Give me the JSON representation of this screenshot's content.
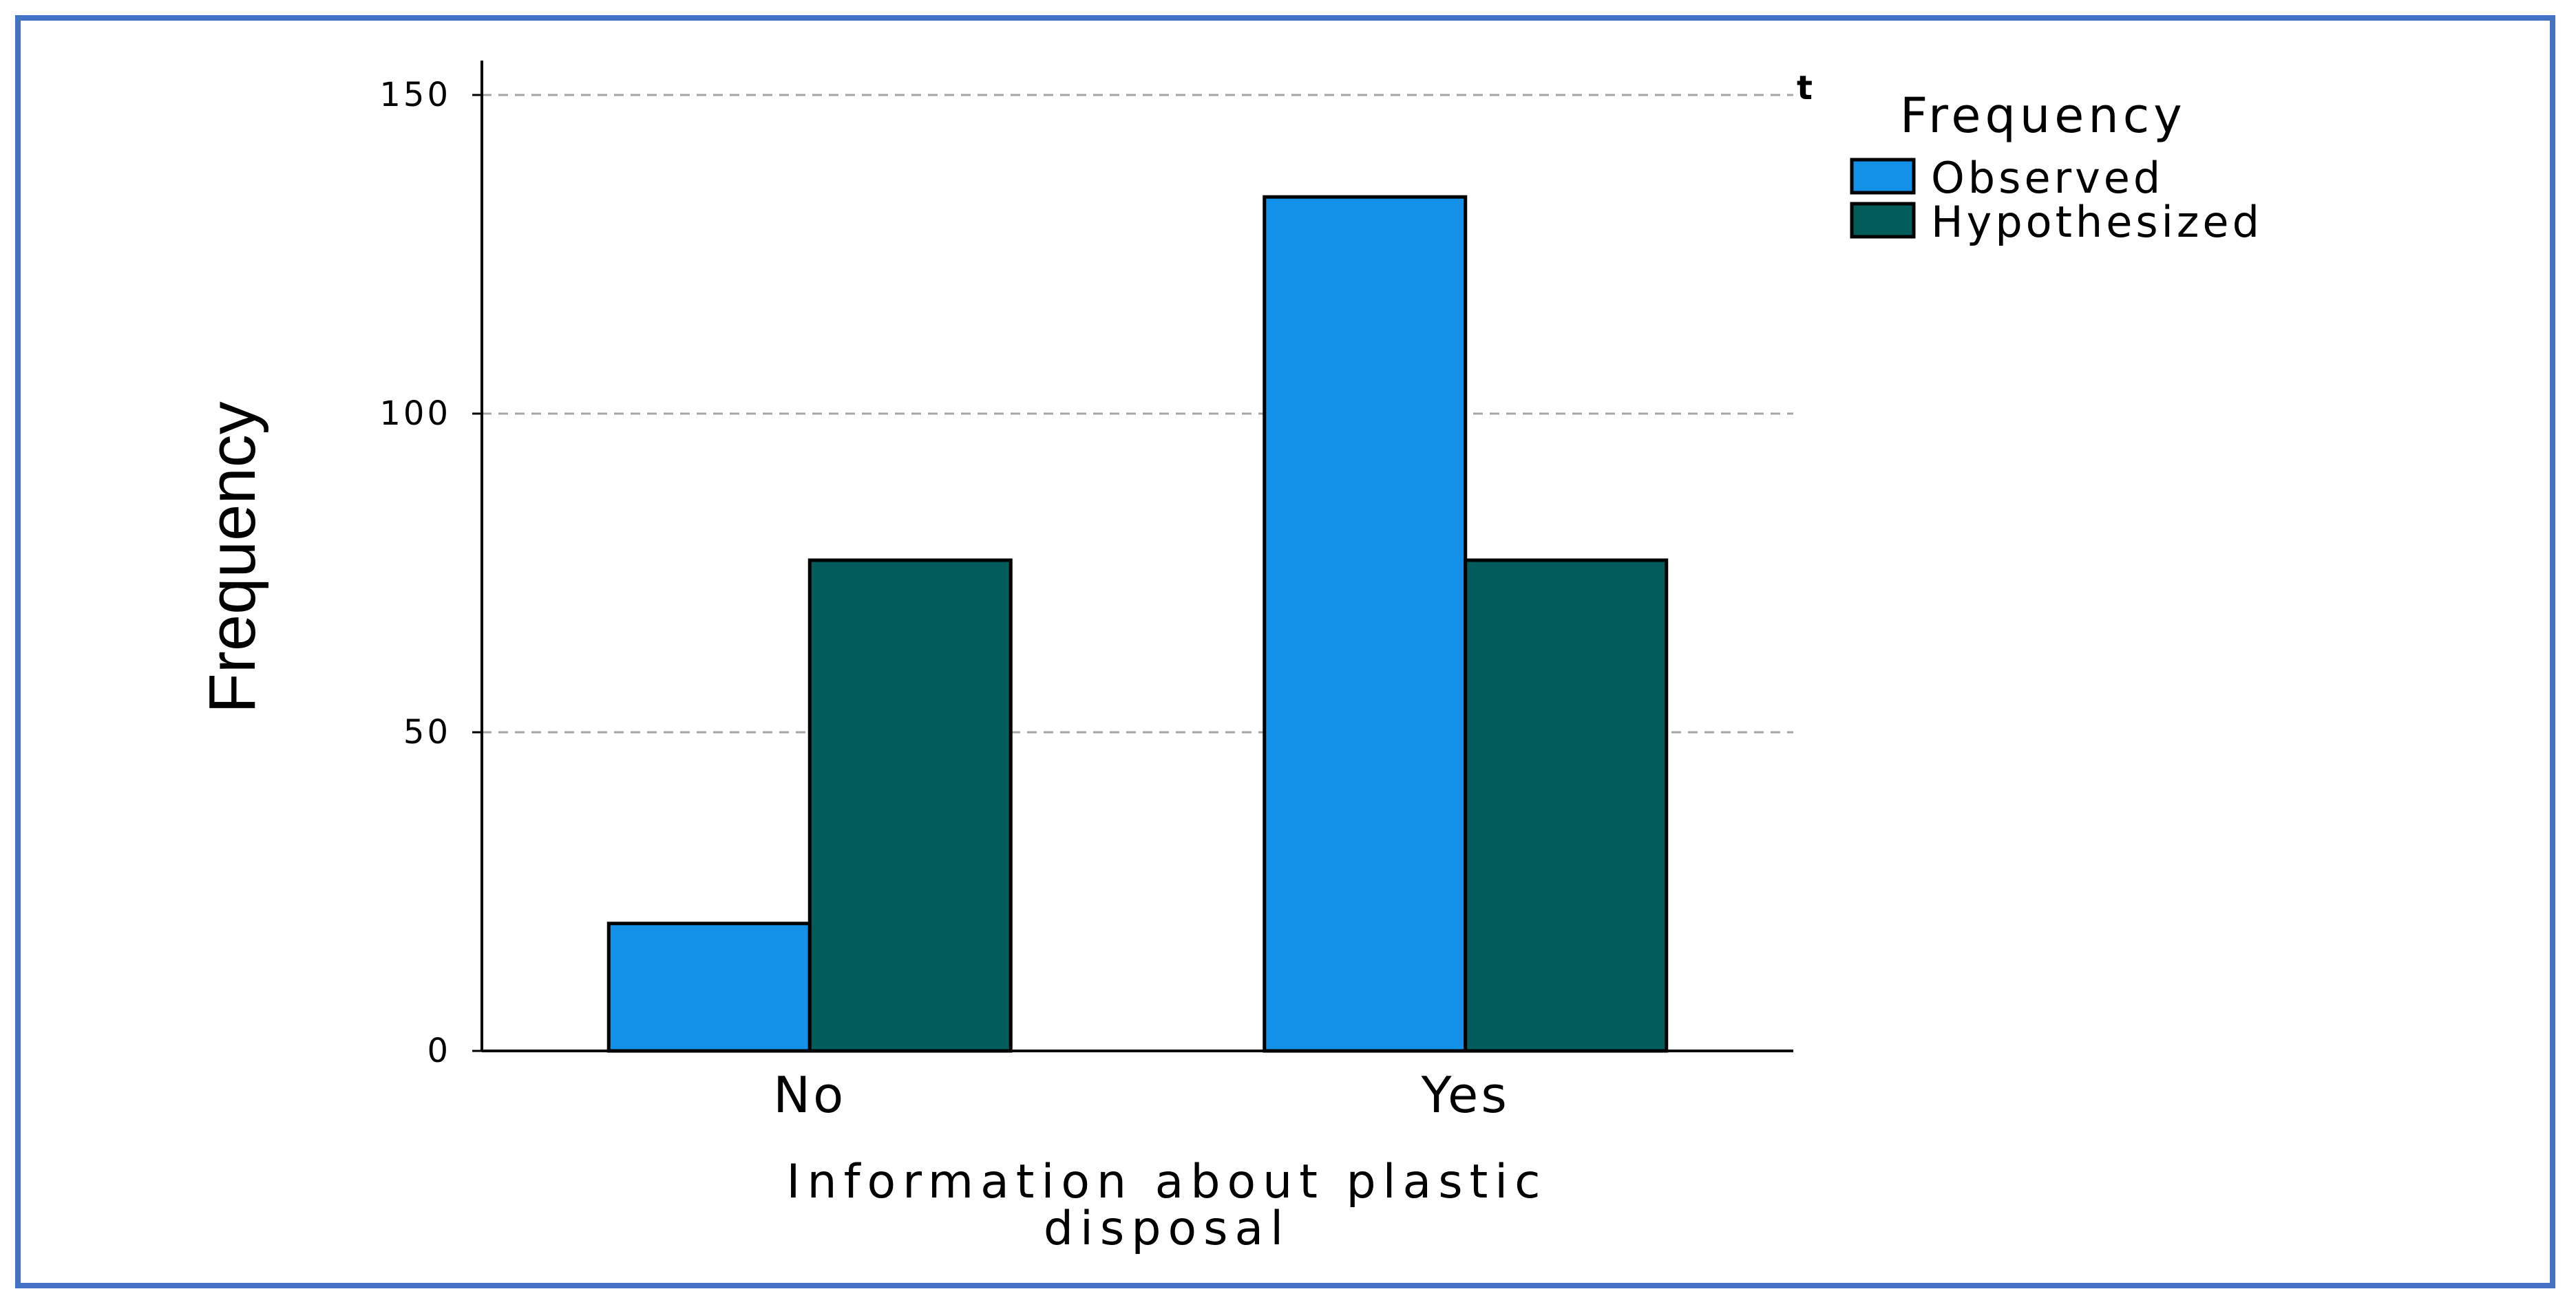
{
  "chart_data": {
    "type": "bar",
    "categories": [
      "No",
      "Yes"
    ],
    "series": [
      {
        "name": "Observed",
        "values": [
          20,
          134
        ],
        "color": "#1391e8"
      },
      {
        "name": "Hypothesized",
        "values": [
          77,
          77
        ],
        "color": "#005d5b"
      }
    ],
    "xlabel": [
      "Information about plastic",
      "disposal"
    ],
    "ylabel": "Frequency",
    "ylim": [
      0,
      150
    ],
    "yticks": [
      0,
      50,
      100,
      150
    ],
    "grid": "dashed horizontal",
    "legend": {
      "title": "Frequency",
      "placement": "top-right"
    },
    "stray_mark": "t"
  }
}
